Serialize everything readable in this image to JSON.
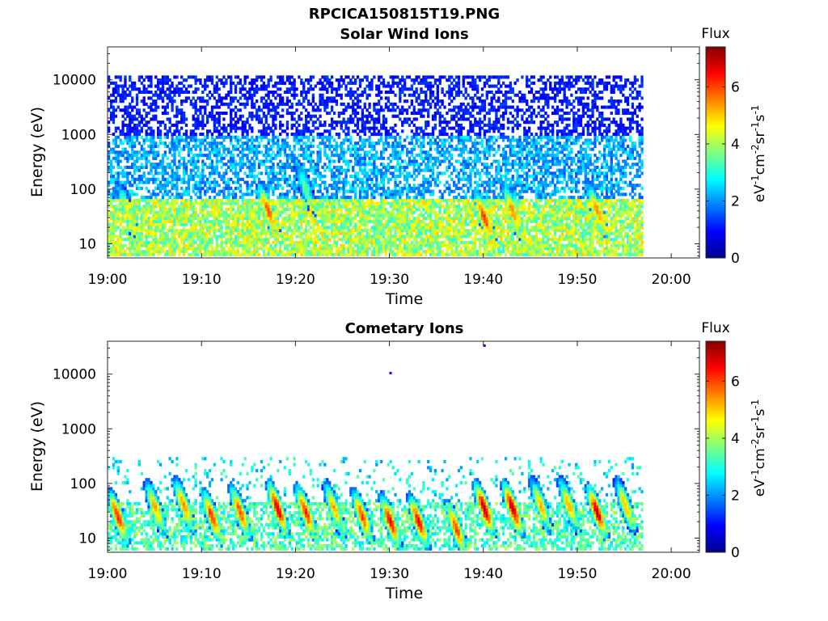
{
  "figure": {
    "title": "RPCICA150815T19.PNG"
  },
  "chart_data": [
    {
      "type": "heatmap",
      "title": "Solar Wind Ions",
      "xlabel": "Time",
      "ylabel": "Energy (eV)",
      "x_ticks": [
        "19:00",
        "19:10",
        "19:20",
        "19:30",
        "19:40",
        "19:50",
        "20:00"
      ],
      "x_range": [
        "19:00",
        "20:03"
      ],
      "data_end": "19:57",
      "y_scale": "log",
      "y_ticks": [
        "10",
        "100",
        "1000",
        "10000"
      ],
      "y_range": [
        5.5,
        40000
      ],
      "colorbar": {
        "title": "Flux",
        "label": "eV-1cm-2sr-1s-1",
        "ticks": [
          "0",
          "2",
          "4",
          "6"
        ],
        "range": [
          0,
          7.4
        ],
        "colormap": "jet"
      },
      "description_bands": [
        {
          "energy_range_eV": [
            6,
            70
          ],
          "flux_range": [
            3,
            5
          ]
        },
        {
          "energy_range_eV": [
            70,
            1000
          ],
          "flux_range": [
            1.5,
            2.8
          ]
        },
        {
          "energy_range_eV": [
            1000,
            12000
          ],
          "flux_range": [
            0.8,
            1.4
          ]
        }
      ],
      "enhancements": [
        {
          "time": "19:02",
          "energy_eV": 40,
          "flux": 4.5
        },
        {
          "time": "19:17",
          "energy_eV": 40,
          "flux": 6.0
        },
        {
          "time": "19:21",
          "energy_eV": 100,
          "flux": 3.6
        },
        {
          "time": "19:40",
          "energy_eV": 30,
          "flux": 6.2
        },
        {
          "time": "19:43",
          "energy_eV": 40,
          "flux": 5.5
        },
        {
          "time": "19:52",
          "energy_eV": 40,
          "flux": 5.5
        }
      ]
    },
    {
      "type": "heatmap",
      "title": "Cometary Ions",
      "xlabel": "Time",
      "ylabel": "Energy (eV)",
      "x_ticks": [
        "19:00",
        "19:10",
        "19:20",
        "19:30",
        "19:40",
        "19:50",
        "20:00"
      ],
      "x_range": [
        "19:00",
        "20:03"
      ],
      "data_end": "19:57",
      "y_scale": "log",
      "y_ticks": [
        "10",
        "100",
        "1000",
        "10000"
      ],
      "y_range": [
        5.5,
        40000
      ],
      "colorbar": {
        "title": "Flux",
        "label": "eV-1cm-2sr-1s-1",
        "ticks": [
          "0",
          "2",
          "4",
          "6"
        ],
        "range": [
          0,
          7.4
        ],
        "colormap": "jet"
      },
      "enhancements": [
        {
          "time": "19:01",
          "energy_eV": 25,
          "flux": 6.3
        },
        {
          "time": "19:05",
          "energy_eV": 35,
          "flux": 5.3
        },
        {
          "time": "19:08",
          "energy_eV": 40,
          "flux": 5.6
        },
        {
          "time": "19:11",
          "energy_eV": 25,
          "flux": 6.2
        },
        {
          "time": "19:14",
          "energy_eV": 30,
          "flux": 6.0
        },
        {
          "time": "19:18",
          "energy_eV": 35,
          "flux": 6.8
        },
        {
          "time": "19:21",
          "energy_eV": 30,
          "flux": 6.3
        },
        {
          "time": "19:24",
          "energy_eV": 35,
          "flux": 5.3
        },
        {
          "time": "19:27",
          "energy_eV": 25,
          "flux": 6.0
        },
        {
          "time": "19:30",
          "energy_eV": 20,
          "flux": 6.5
        },
        {
          "time": "19:33",
          "energy_eV": 20,
          "flux": 6.5
        },
        {
          "time": "19:37",
          "energy_eV": 15,
          "flux": 6.0
        },
        {
          "time": "19:40",
          "energy_eV": 35,
          "flux": 7.0
        },
        {
          "time": "19:43",
          "energy_eV": 35,
          "flux": 7.0
        },
        {
          "time": "19:46",
          "energy_eV": 40,
          "flux": 5.2
        },
        {
          "time": "19:49",
          "energy_eV": 40,
          "flux": 5.3
        },
        {
          "time": "19:52",
          "energy_eV": 30,
          "flux": 6.8
        },
        {
          "time": "19:55",
          "energy_eV": 40,
          "flux": 5.2
        }
      ],
      "sparse_high_energy_points": [
        {
          "time": "19:30",
          "energy_eV": 11000,
          "flux": 1.0
        },
        {
          "time": "19:40",
          "energy_eV": 35000,
          "flux": 1.0
        }
      ]
    }
  ]
}
